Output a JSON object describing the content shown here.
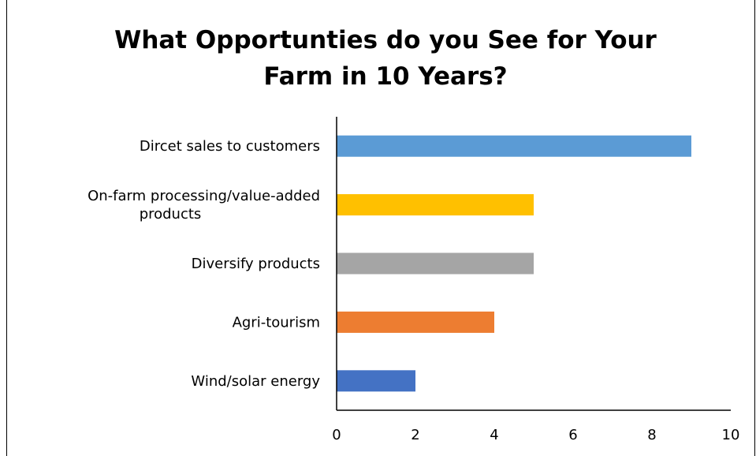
{
  "chart_data": {
    "type": "bar",
    "orientation": "horizontal",
    "title": "What Opportunties do you See for Your Farm in 10 Years?",
    "xlabel": "",
    "ylabel": "",
    "categories": [
      [
        "Dircet sales to customers"
      ],
      [
        "On-farm processing/value-added",
        "products"
      ],
      [
        "Diversify products"
      ],
      [
        "Agri-tourism"
      ],
      [
        "Wind/solar energy"
      ]
    ],
    "values": [
      9,
      5,
      5,
      4,
      2
    ],
    "colors": [
      "#5b9bd5",
      "#ffc000",
      "#a5a5a5",
      "#ed7d31",
      "#4472c4"
    ],
    "xlim": [
      0,
      10
    ],
    "xticks": [
      0,
      2,
      4,
      6,
      8,
      10
    ],
    "grid": false,
    "legend": "none"
  }
}
